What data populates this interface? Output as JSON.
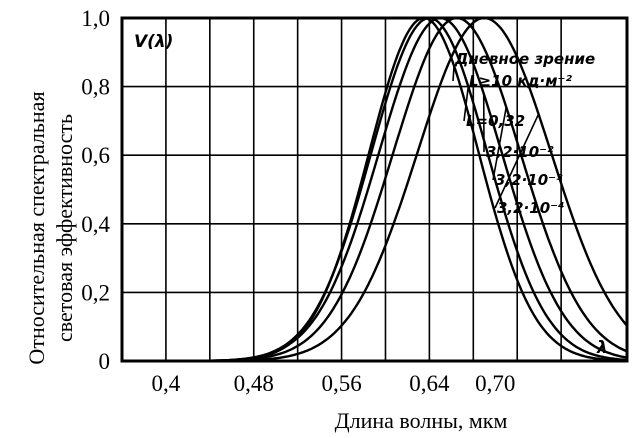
{
  "chart_data": {
    "type": "line",
    "ylabel_lines": [
      "Относительная спектральная",
      "световая эффективность"
    ],
    "xlabel": "Длина волны, мкм",
    "curve_label": "V(λ)",
    "axis_symbol": "λ",
    "xlim": [
      0.36,
      0.82
    ],
    "ylim": [
      0,
      1.0
    ],
    "x_ticks": [
      {
        "value": 0.4,
        "label": "0,4"
      },
      {
        "value": 0.48,
        "label": "0,48"
      },
      {
        "value": 0.56,
        "label": "0,56"
      },
      {
        "value": 0.64,
        "label": "0,64"
      },
      {
        "value": 0.7,
        "label": "0,70"
      }
    ],
    "y_ticks": [
      {
        "value": 0,
        "label": "0"
      },
      {
        "value": 0.2,
        "label": "0,2"
      },
      {
        "value": 0.4,
        "label": "0,4"
      },
      {
        "value": 0.6,
        "label": "0,6"
      },
      {
        "value": 0.8,
        "label": "0,8"
      },
      {
        "value": 1.0,
        "label": "1,0"
      }
    ],
    "grid_x": [
      0.4,
      0.44,
      0.48,
      0.52,
      0.56,
      0.6,
      0.64,
      0.68,
      0.72,
      0.76
    ],
    "grid_y": [
      0.2,
      0.4,
      0.6,
      0.8
    ],
    "series": [
      {
        "name": "Дневное зрение L≥10 кд·м⁻²",
        "label_lines": [
          "Дневное зрение",
          "L≥10 кд·м⁻²"
        ],
        "peak": 0.635,
        "sigma": 0.05
      },
      {
        "name": "L=0,32",
        "label_lines": [
          "L=0,32"
        ],
        "peak": 0.64,
        "sigma": 0.053
      },
      {
        "name": "3,2·10⁻²",
        "label_lines": [
          "3,2·10⁻²"
        ],
        "peak": 0.65,
        "sigma": 0.056
      },
      {
        "name": "3,2·10⁻³",
        "label_lines": [
          "3,2·10⁻³"
        ],
        "peak": 0.665,
        "sigma": 0.058
      },
      {
        "name": "3,2·10⁻⁴",
        "label_lines": [
          "3,2·10⁻⁴"
        ],
        "peak": 0.69,
        "sigma": 0.061
      }
    ]
  }
}
